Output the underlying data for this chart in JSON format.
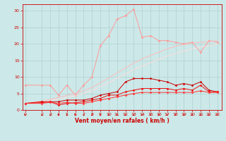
{
  "x": [
    0,
    2,
    3,
    4,
    5,
    6,
    7,
    8,
    9,
    10,
    11,
    12,
    13,
    14,
    15,
    16,
    17,
    18,
    19,
    20,
    21,
    22,
    23
  ],
  "series": [
    {
      "name": "line1_light_markers",
      "color": "#FF9999",
      "linewidth": 0.7,
      "marker": "D",
      "markersize": 1.5,
      "y": [
        7.5,
        7.5,
        7.5,
        4.5,
        7.5,
        4.5,
        7.5,
        10.0,
        19.5,
        22.5,
        27.5,
        28.5,
        30.5,
        22.0,
        22.5,
        21.0,
        21.0,
        20.5,
        20.0,
        20.5,
        17.5,
        21.0,
        20.5
      ]
    },
    {
      "name": "line2_light_linear_upper",
      "color": "#FFBBBB",
      "linewidth": 0.7,
      "marker": null,
      "y": [
        2.0,
        2.7,
        3.2,
        3.8,
        4.4,
        5.0,
        5.8,
        6.8,
        8.2,
        9.7,
        11.2,
        12.7,
        14.2,
        15.5,
        16.5,
        17.5,
        18.5,
        19.3,
        19.8,
        20.3,
        20.5,
        20.7,
        21.0
      ]
    },
    {
      "name": "line3_light_linear_lower",
      "color": "#FFDDDD",
      "linewidth": 0.7,
      "marker": null,
      "y": [
        2.0,
        2.4,
        2.9,
        3.3,
        3.8,
        4.3,
        5.0,
        5.8,
        7.0,
        8.3,
        9.6,
        10.9,
        12.2,
        13.3,
        14.3,
        15.3,
        16.3,
        17.1,
        17.8,
        18.5,
        19.0,
        19.5,
        20.0
      ]
    },
    {
      "name": "line4_dark_upper",
      "color": "#CC0000",
      "linewidth": 0.7,
      "marker": "D",
      "markersize": 1.5,
      "y": [
        2.0,
        2.5,
        2.5,
        2.5,
        3.0,
        3.0,
        3.0,
        3.5,
        4.5,
        5.0,
        5.5,
        8.5,
        9.5,
        9.5,
        9.5,
        9.0,
        8.5,
        7.5,
        8.0,
        7.5,
        8.5,
        6.0,
        5.5
      ]
    },
    {
      "name": "line5_dark_mid",
      "color": "#EE1111",
      "linewidth": 0.7,
      "marker": "D",
      "markersize": 1.5,
      "y": [
        2.0,
        2.2,
        2.5,
        1.5,
        2.0,
        2.2,
        2.5,
        3.0,
        3.5,
        4.5,
        4.5,
        5.5,
        6.0,
        6.5,
        6.5,
        6.5,
        6.5,
        6.0,
        6.5,
        6.0,
        7.5,
        5.5,
        5.5
      ]
    },
    {
      "name": "line6_dark_lower",
      "color": "#FF3333",
      "linewidth": 0.7,
      "marker": "D",
      "markersize": 1.5,
      "y": [
        2.0,
        2.0,
        2.3,
        2.0,
        2.3,
        2.0,
        2.0,
        2.5,
        3.0,
        3.5,
        4.0,
        4.5,
        5.0,
        5.3,
        5.3,
        5.3,
        5.3,
        5.3,
        5.3,
        5.3,
        5.8,
        5.3,
        5.3
      ]
    }
  ],
  "xlabel": "Vent moyen/en rafales ( km/h )",
  "ylim": [
    0,
    32
  ],
  "xlim": [
    -0.3,
    23.5
  ],
  "yticks": [
    0,
    5,
    10,
    15,
    20,
    25,
    30
  ],
  "xticks": [
    0,
    2,
    3,
    4,
    5,
    6,
    7,
    8,
    9,
    10,
    11,
    12,
    13,
    14,
    15,
    16,
    17,
    18,
    19,
    20,
    21,
    22,
    23
  ],
  "bg_color": "#CCE8E8",
  "grid_color": "#AACCCC",
  "text_color": "#CC0000",
  "figsize": [
    3.2,
    2.0
  ],
  "dpi": 100
}
